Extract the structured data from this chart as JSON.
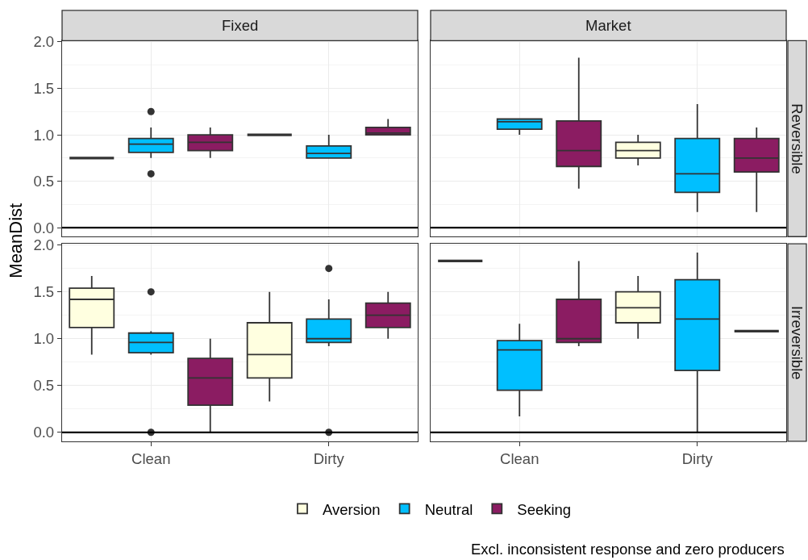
{
  "chart_data": [
    {
      "type": "box",
      "title": "Fixed",
      "ylabel": "MeanDist",
      "categories": [
        "Clean",
        "Dirty"
      ],
      "ylim": [
        -0.096,
        2.013
      ],
      "yticks": [
        {
          "value": 0,
          "label": "0.0"
        },
        {
          "value": 0.5,
          "label": "0.5"
        },
        {
          "value": 1,
          "label": "1.0"
        },
        {
          "value": 1.5,
          "label": "1.5"
        },
        {
          "value": 2,
          "label": "2.0"
        }
      ],
      "grid": true,
      "tick_labels": "y",
      "ref_lines": [
        {
          "axis": "y",
          "value": 0,
          "color": "#000000"
        }
      ],
      "series": [
        {
          "colors": [
            "#333333",
            "#333333"
          ],
          "boxes": [
            {
              "low": 0.75,
              "q1": 0.75,
              "median": 0.75,
              "q3": 0.75,
              "high": 0.75
            },
            {
              "low": 1.0,
              "q1": 1.0,
              "median": 1.0,
              "q3": 1.0,
              "high": 1.0
            }
          ]
        },
        {
          "color": "#00bfff",
          "boxes": [
            {
              "low": 0.75,
              "q1": 0.81,
              "median": 0.9,
              "q3": 0.96,
              "high": 1.08,
              "outliers": [
                1.25,
                0.58
              ]
            },
            {
              "low": 0.75,
              "q1": 0.75,
              "median": 0.8,
              "q3": 0.88,
              "high": 1.0
            }
          ]
        },
        {
          "color": "#8b1c62",
          "boxes": [
            {
              "low": 0.75,
              "q1": 0.83,
              "median": 0.92,
              "q3": 1.0,
              "high": 1.08
            },
            {
              "low": 1.0,
              "q1": 1.0,
              "median": 1.02,
              "q3": 1.08,
              "high": 1.17
            }
          ]
        }
      ]
    },
    {
      "type": "box",
      "title": "Market",
      "annotations": [
        "Reversible"
      ],
      "categories": [
        "Clean",
        "Dirty"
      ],
      "ylim": [
        -0.096,
        2.013
      ],
      "grid": true,
      "tick_labels": false,
      "ref_lines": [
        {
          "axis": "y",
          "value": 0,
          "color": "#000000"
        }
      ],
      "series": [
        {
          "color": "#ffffe0",
          "boxes": [
            null,
            {
              "low": 0.67,
              "q1": 0.75,
              "median": 0.83,
              "q3": 0.92,
              "high": 1.0
            }
          ]
        },
        {
          "color": "#00bfff",
          "boxes": [
            {
              "low": 1.0,
              "q1": 1.06,
              "median": 1.14,
              "q3": 1.17,
              "high": 1.17
            },
            {
              "low": 0.17,
              "q1": 0.38,
              "median": 0.58,
              "q3": 0.96,
              "high": 1.33
            }
          ]
        },
        {
          "color": "#8b1c62",
          "boxes": [
            {
              "low": 0.42,
              "q1": 0.66,
              "median": 0.83,
              "q3": 1.15,
              "high": 1.83
            },
            {
              "low": 0.17,
              "q1": 0.6,
              "median": 0.75,
              "q3": 0.96,
              "high": 1.08
            }
          ]
        }
      ]
    },
    {
      "type": "box",
      "categories": [
        "Clean",
        "Dirty"
      ],
      "ylim": [
        -0.096,
        2.013
      ],
      "yticks": [
        {
          "value": 0,
          "label": "0.0"
        },
        {
          "value": 0.5,
          "label": "0.5"
        },
        {
          "value": 1,
          "label": "1.0"
        },
        {
          "value": 1.5,
          "label": "1.5"
        },
        {
          "value": 2,
          "label": "2.0"
        }
      ],
      "grid": true,
      "legend": "bottom",
      "ref_lines": [
        {
          "axis": "y",
          "value": 0,
          "color": "#000000"
        }
      ],
      "series": [
        {
          "name": "Aversion",
          "color": "#ffffe0",
          "boxes": [
            {
              "low": 0.83,
              "q1": 1.12,
              "median": 1.42,
              "q3": 1.54,
              "high": 1.67
            },
            {
              "low": 0.33,
              "q1": 0.58,
              "median": 0.83,
              "q3": 1.17,
              "high": 1.5
            }
          ]
        },
        {
          "name": "Neutral",
          "color": "#00bfff",
          "boxes": [
            {
              "low": 0.83,
              "q1": 0.85,
              "median": 0.96,
              "q3": 1.06,
              "high": 1.08,
              "outliers": [
                1.5,
                0
              ]
            },
            {
              "low": 0.92,
              "q1": 0.96,
              "median": 1.0,
              "q3": 1.21,
              "high": 1.42,
              "outliers": [
                1.75,
                0
              ]
            }
          ]
        },
        {
          "name": "Seeking",
          "color": "#8b1c62",
          "boxes": [
            {
              "low": 0,
              "q1": 0.29,
              "median": 0.58,
              "q3": 0.79,
              "high": 1.0
            },
            {
              "low": 1.0,
              "q1": 1.12,
              "median": 1.25,
              "q3": 1.38,
              "high": 1.5
            }
          ]
        }
      ]
    },
    {
      "type": "box",
      "annotations": [
        "Irreversible",
        "Excl. inconsistent response and zero producers"
      ],
      "categories": [
        "Clean",
        "Dirty"
      ],
      "ylim": [
        -0.096,
        2.013
      ],
      "grid": true,
      "tick_labels": "x",
      "ref_lines": [
        {
          "axis": "y",
          "value": 0,
          "color": "#000000"
        }
      ],
      "series": [
        {
          "color": "#ffffe0",
          "colors": [
            "#333333",
            null
          ],
          "boxes": [
            {
              "low": 1.83,
              "q1": 1.83,
              "median": 1.83,
              "q3": 1.83,
              "high": 1.83
            },
            {
              "low": 1.0,
              "q1": 1.17,
              "median": 1.33,
              "q3": 1.5,
              "high": 1.67
            }
          ]
        },
        {
          "color": "#00bfff",
          "boxes": [
            {
              "low": 0.17,
              "q1": 0.45,
              "median": 0.88,
              "q3": 0.98,
              "high": 1.16
            },
            {
              "low": 0,
              "q1": 0.66,
              "median": 1.21,
              "q3": 1.63,
              "high": 1.92
            }
          ]
        },
        {
          "color": "#8b1c62",
          "colors": [
            null,
            "#333333"
          ],
          "boxes": [
            {
              "low": 0.92,
              "q1": 0.96,
              "median": 1.0,
              "q3": 1.42,
              "high": 1.83
            },
            {
              "low": 1.08,
              "q1": 1.08,
              "median": 1.08,
              "q3": 1.08,
              "high": 1.08
            }
          ]
        }
      ]
    }
  ]
}
